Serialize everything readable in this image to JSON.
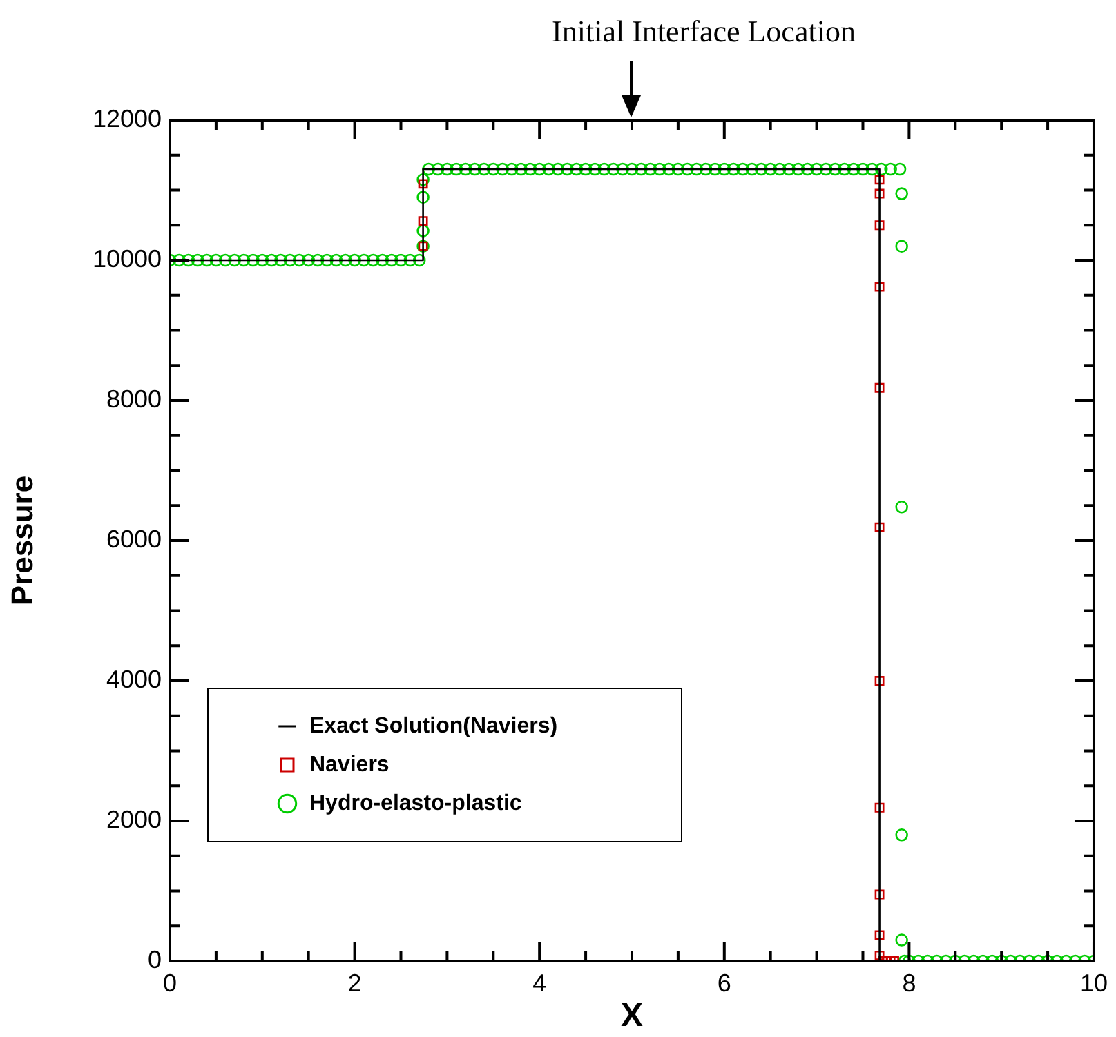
{
  "chart_data": {
    "type": "scatter",
    "xlabel": "X",
    "ylabel": "Pressure",
    "annotations": [
      "Initial Interface Location"
    ],
    "xlim": [
      0,
      10
    ],
    "ylim": [
      0,
      12000
    ],
    "xticks": [
      0,
      {
        "value": 0.5,
        "label": null
      },
      {
        "value": 1,
        "label": null
      },
      {
        "value": 1.5,
        "label": null
      },
      2,
      {
        "value": 2.5,
        "label": null
      },
      {
        "value": 3,
        "label": null
      },
      {
        "value": 3.5,
        "label": null
      },
      4,
      {
        "value": 4.5,
        "label": null
      },
      {
        "value": 5,
        "label": null
      },
      {
        "value": 5.5,
        "label": null
      },
      6,
      {
        "value": 6.5,
        "label": null
      },
      {
        "value": 7,
        "label": null
      },
      {
        "value": 7.5,
        "label": null
      },
      8,
      {
        "value": 8.5,
        "label": null
      },
      {
        "value": 9,
        "label": null
      },
      {
        "value": 9.5,
        "label": null
      },
      10
    ],
    "yticks": [
      0,
      {
        "value": 500,
        "label": null
      },
      {
        "value": 1000,
        "label": null
      },
      {
        "value": 1500,
        "label": null
      },
      2000,
      {
        "value": 2500,
        "label": null
      },
      {
        "value": 3000,
        "label": null
      },
      {
        "value": 3500,
        "label": null
      },
      4000,
      {
        "value": 4500,
        "label": null
      },
      {
        "value": 5000,
        "label": null
      },
      {
        "value": 5500,
        "label": null
      },
      6000,
      {
        "value": 6500,
        "label": null
      },
      {
        "value": 7000,
        "label": null
      },
      {
        "value": 7500,
        "label": null
      },
      8000,
      {
        "value": 8500,
        "label": null
      },
      {
        "value": 9000,
        "label": null
      },
      {
        "value": 9500,
        "label": null
      },
      10000,
      {
        "value": 10500,
        "label": null
      },
      {
        "value": 11000,
        "label": null
      },
      {
        "value": 11500,
        "label": null
      },
      12000
    ],
    "grid": false,
    "legend": "bottom left",
    "series": [
      {
        "name": "Exact Solution(Naviers)",
        "type": "line",
        "color": "#000000",
        "marker": "none",
        "line_style": "solid",
        "x": [
          0,
          2.74,
          2.74,
          7.68,
          7.68,
          10
        ],
        "values": [
          10000,
          10000,
          11300,
          11300,
          0,
          0
        ]
      },
      {
        "name": "Naviers",
        "type": "scatter",
        "color": "#cc0000",
        "marker": "square",
        "x": [
          2.74,
          2.74,
          2.74,
          7.68,
          7.68,
          7.68,
          7.68,
          7.68,
          7.68,
          7.68,
          7.68,
          7.68,
          7.68,
          7.68,
          7.72,
          7.76,
          7.8,
          7.84
        ],
        "values": [
          10200,
          10560,
          11090,
          11150,
          10950,
          10500,
          9620,
          8180,
          6190,
          4000,
          2190,
          950,
          370,
          80,
          0,
          0,
          0,
          0
        ]
      },
      {
        "name": "Hydro-elasto-plastic",
        "type": "scatter",
        "color": "#00cc00",
        "marker": "circle",
        "x": [
          0,
          0.1,
          0.2,
          0.3,
          0.4,
          0.5,
          0.6,
          0.7,
          0.8,
          0.9,
          1,
          1.1,
          1.2,
          1.3,
          1.4,
          1.5,
          1.6,
          1.7,
          1.8,
          1.9,
          2,
          2.1,
          2.2,
          2.3,
          2.4,
          2.5,
          2.6,
          2.7,
          2.74,
          2.74,
          2.74,
          2.74,
          2.8,
          2.9,
          3,
          3.1,
          3.2,
          3.3,
          3.4,
          3.5,
          3.6,
          3.7,
          3.8,
          3.9,
          4,
          4.1,
          4.2,
          4.3,
          4.4,
          4.5,
          4.6,
          4.7,
          4.8,
          4.9,
          5,
          5.1,
          5.2,
          5.3,
          5.4,
          5.5,
          5.6,
          5.7,
          5.8,
          5.9,
          6,
          6.1,
          6.2,
          6.3,
          6.4,
          6.5,
          6.6,
          6.7,
          6.8,
          6.9,
          7,
          7.1,
          7.2,
          7.3,
          7.4,
          7.5,
          7.6,
          7.7,
          7.8,
          7.9,
          7.92,
          7.92,
          7.92,
          7.92,
          7.92,
          7.95,
          8,
          8.1,
          8.2,
          8.3,
          8.4,
          8.5,
          8.6,
          8.7,
          8.8,
          8.9,
          9,
          9.1,
          9.2,
          9.3,
          9.4,
          9.5,
          9.6,
          9.7,
          9.8,
          9.9,
          10
        ],
        "values": [
          10000,
          10000,
          10000,
          10000,
          10000,
          10000,
          10000,
          10000,
          10000,
          10000,
          10000,
          10000,
          10000,
          10000,
          10000,
          10000,
          10000,
          10000,
          10000,
          10000,
          10000,
          10000,
          10000,
          10000,
          10000,
          10000,
          10000,
          10000,
          10200,
          10420,
          10900,
          11150,
          11300,
          11300,
          11300,
          11300,
          11300,
          11300,
          11300,
          11300,
          11300,
          11300,
          11300,
          11300,
          11300,
          11300,
          11300,
          11300,
          11300,
          11300,
          11300,
          11300,
          11300,
          11300,
          11300,
          11300,
          11300,
          11300,
          11300,
          11300,
          11300,
          11300,
          11300,
          11300,
          11300,
          11300,
          11300,
          11300,
          11300,
          11300,
          11300,
          11300,
          11300,
          11300,
          11300,
          11300,
          11300,
          11300,
          11300,
          11300,
          11300,
          11300,
          11300,
          11300,
          10950,
          10200,
          6480,
          1800,
          300,
          0,
          0,
          0,
          0,
          0,
          0,
          0,
          0,
          0,
          0,
          0,
          0,
          0,
          0,
          0,
          0,
          0,
          0,
          0,
          0,
          0,
          0
        ]
      }
    ]
  }
}
